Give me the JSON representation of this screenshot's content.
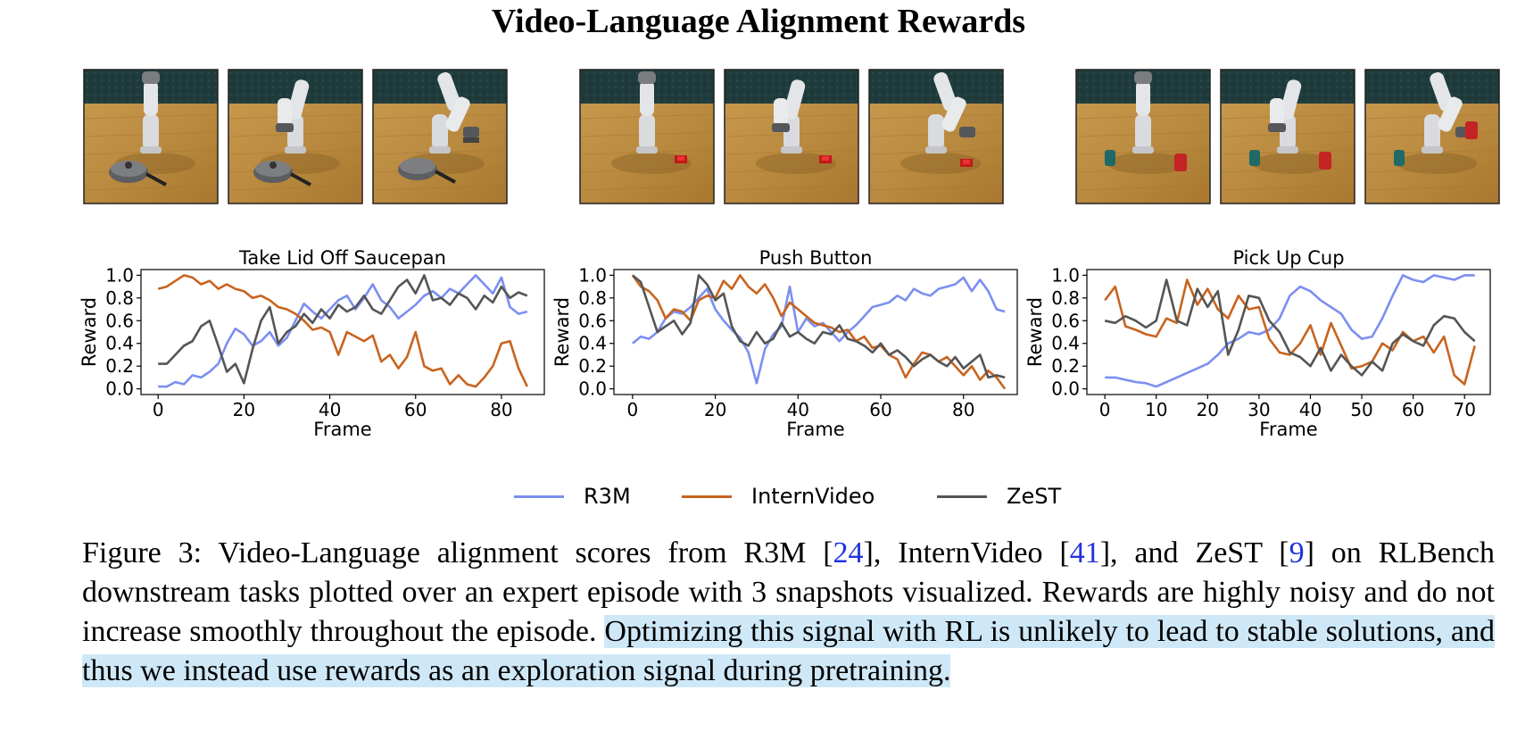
{
  "header": {
    "title": "Video-Language Alignment Rewards"
  },
  "colors": {
    "r3m": "#7b8ff0",
    "internvideo": "#c8641f",
    "zest": "#555555"
  },
  "legend": [
    {
      "label": "R3M",
      "color": "#7b8ff0"
    },
    {
      "label": "InternVideo",
      "color": "#c8641f"
    },
    {
      "label": "ZeST",
      "color": "#555555"
    }
  ],
  "snapshots": [
    {
      "task": "saucepan",
      "frames": [
        "frame-start",
        "frame-mid",
        "frame-end"
      ]
    },
    {
      "task": "button",
      "frames": [
        "frame-start",
        "frame-mid",
        "frame-end"
      ]
    },
    {
      "task": "cup",
      "frames": [
        "frame-start",
        "frame-mid",
        "frame-end"
      ]
    }
  ],
  "chart_data": [
    {
      "type": "line",
      "title": "Take Lid Off Saucepan",
      "xlabel": "Frame",
      "ylabel": "Reward",
      "xlim": [
        -4,
        90
      ],
      "ylim": [
        -0.05,
        1.05
      ],
      "xticks": [
        0,
        20,
        40,
        60,
        80
      ],
      "yticks": [
        "0.0",
        "0.2",
        "0.4",
        "0.6",
        "0.8",
        "1.0"
      ],
      "x": [
        0,
        2,
        4,
        6,
        8,
        10,
        12,
        14,
        16,
        18,
        20,
        22,
        24,
        26,
        28,
        30,
        32,
        34,
        36,
        38,
        40,
        42,
        44,
        46,
        48,
        50,
        52,
        54,
        56,
        58,
        60,
        62,
        64,
        66,
        68,
        70,
        72,
        74,
        76,
        78,
        80,
        82,
        84,
        86
      ],
      "series": [
        {
          "name": "R3M",
          "values": [
            0.02,
            0.02,
            0.06,
            0.04,
            0.12,
            0.1,
            0.15,
            0.22,
            0.4,
            0.53,
            0.48,
            0.38,
            0.42,
            0.5,
            0.38,
            0.45,
            0.6,
            0.75,
            0.68,
            0.62,
            0.7,
            0.78,
            0.82,
            0.7,
            0.8,
            0.92,
            0.78,
            0.72,
            0.62,
            0.68,
            0.74,
            0.82,
            0.86,
            0.8,
            0.88,
            0.84,
            0.92,
            1.0,
            0.92,
            0.84,
            0.98,
            0.72,
            0.66,
            0.68
          ]
        },
        {
          "name": "InternVideo",
          "values": [
            0.88,
            0.9,
            0.95,
            1.0,
            0.98,
            0.92,
            0.95,
            0.88,
            0.92,
            0.88,
            0.86,
            0.8,
            0.82,
            0.78,
            0.72,
            0.7,
            0.66,
            0.6,
            0.52,
            0.54,
            0.5,
            0.3,
            0.5,
            0.46,
            0.42,
            0.47,
            0.24,
            0.3,
            0.18,
            0.28,
            0.5,
            0.2,
            0.16,
            0.18,
            0.04,
            0.12,
            0.04,
            0.02,
            0.1,
            0.2,
            0.4,
            0.42,
            0.18,
            0.02
          ]
        },
        {
          "name": "ZeST",
          "values": [
            0.22,
            0.22,
            0.3,
            0.38,
            0.42,
            0.55,
            0.6,
            0.38,
            0.15,
            0.22,
            0.05,
            0.35,
            0.6,
            0.72,
            0.4,
            0.5,
            0.55,
            0.66,
            0.58,
            0.7,
            0.62,
            0.74,
            0.68,
            0.72,
            0.82,
            0.7,
            0.66,
            0.78,
            0.9,
            0.96,
            0.84,
            1.0,
            0.78,
            0.8,
            0.74,
            0.84,
            0.8,
            0.7,
            0.82,
            0.76,
            0.9,
            0.8,
            0.85,
            0.82
          ]
        }
      ]
    },
    {
      "type": "line",
      "title": "Push Button",
      "xlabel": "Frame",
      "ylabel": "Reward",
      "xlim": [
        -4.5,
        93
      ],
      "ylim": [
        -0.05,
        1.05
      ],
      "xticks": [
        0,
        20,
        40,
        60,
        80
      ],
      "yticks": [
        "0.0",
        "0.2",
        "0.4",
        "0.6",
        "0.8",
        "1.0"
      ],
      "x": [
        0,
        2,
        4,
        6,
        8,
        10,
        12,
        14,
        16,
        18,
        20,
        22,
        24,
        26,
        28,
        30,
        32,
        34,
        36,
        38,
        40,
        42,
        44,
        46,
        48,
        50,
        52,
        54,
        56,
        58,
        60,
        62,
        64,
        66,
        68,
        70,
        72,
        74,
        76,
        78,
        80,
        82,
        84,
        86,
        88,
        90
      ],
      "series": [
        {
          "name": "R3M",
          "values": [
            0.4,
            0.46,
            0.44,
            0.5,
            0.62,
            0.68,
            0.66,
            0.72,
            0.8,
            0.88,
            0.7,
            0.6,
            0.52,
            0.45,
            0.32,
            0.05,
            0.35,
            0.48,
            0.55,
            0.9,
            0.5,
            0.62,
            0.55,
            0.58,
            0.5,
            0.42,
            0.5,
            0.56,
            0.64,
            0.72,
            0.74,
            0.76,
            0.82,
            0.78,
            0.88,
            0.84,
            0.82,
            0.88,
            0.9,
            0.92,
            0.98,
            0.86,
            0.96,
            0.86,
            0.7,
            0.68
          ]
        },
        {
          "name": "InternVideo",
          "values": [
            1.0,
            0.9,
            0.86,
            0.78,
            0.62,
            0.7,
            0.68,
            0.6,
            0.78,
            0.82,
            0.8,
            0.95,
            0.88,
            1.0,
            0.9,
            0.84,
            0.92,
            0.8,
            0.64,
            0.76,
            0.7,
            0.64,
            0.58,
            0.56,
            0.54,
            0.5,
            0.52,
            0.42,
            0.46,
            0.36,
            0.38,
            0.3,
            0.26,
            0.1,
            0.22,
            0.32,
            0.3,
            0.24,
            0.28,
            0.2,
            0.12,
            0.2,
            0.08,
            0.16,
            0.1,
            0.0
          ]
        },
        {
          "name": "ZeST",
          "values": [
            1.0,
            0.94,
            0.72,
            0.5,
            0.55,
            0.6,
            0.48,
            0.58,
            1.0,
            0.92,
            0.78,
            0.84,
            0.55,
            0.42,
            0.38,
            0.5,
            0.4,
            0.44,
            0.58,
            0.46,
            0.5,
            0.44,
            0.4,
            0.5,
            0.48,
            0.56,
            0.44,
            0.42,
            0.38,
            0.32,
            0.4,
            0.3,
            0.34,
            0.28,
            0.2,
            0.26,
            0.3,
            0.24,
            0.2,
            0.28,
            0.18,
            0.24,
            0.3,
            0.1,
            0.12,
            0.1
          ]
        }
      ]
    },
    {
      "type": "line",
      "title": "Pick Up Cup",
      "xlabel": "Frame",
      "ylabel": "Reward",
      "xlim": [
        -3.5,
        75
      ],
      "ylim": [
        -0.05,
        1.05
      ],
      "xticks": [
        0,
        10,
        20,
        30,
        40,
        50,
        60,
        70
      ],
      "yticks": [
        "0.0",
        "0.2",
        "0.4",
        "0.6",
        "0.8",
        "1.0"
      ],
      "x": [
        0,
        2,
        4,
        6,
        8,
        10,
        12,
        14,
        16,
        18,
        20,
        22,
        24,
        26,
        28,
        30,
        32,
        34,
        36,
        38,
        40,
        42,
        44,
        46,
        48,
        50,
        52,
        54,
        56,
        58,
        60,
        62,
        64,
        66,
        68,
        70,
        72
      ],
      "series": [
        {
          "name": "R3M",
          "values": [
            0.1,
            0.1,
            0.08,
            0.06,
            0.05,
            0.02,
            0.06,
            0.1,
            0.14,
            0.18,
            0.22,
            0.3,
            0.4,
            0.44,
            0.5,
            0.48,
            0.52,
            0.62,
            0.82,
            0.9,
            0.86,
            0.78,
            0.72,
            0.66,
            0.52,
            0.44,
            0.46,
            0.62,
            0.82,
            1.0,
            0.96,
            0.94,
            1.0,
            0.98,
            0.96,
            1.0,
            1.0
          ]
        },
        {
          "name": "InternVideo",
          "values": [
            0.78,
            0.9,
            0.55,
            0.52,
            0.48,
            0.46,
            0.62,
            0.58,
            0.96,
            0.74,
            0.88,
            0.7,
            0.62,
            0.82,
            0.7,
            0.72,
            0.44,
            0.32,
            0.3,
            0.4,
            0.56,
            0.3,
            0.58,
            0.38,
            0.18,
            0.2,
            0.24,
            0.4,
            0.34,
            0.5,
            0.42,
            0.46,
            0.32,
            0.46,
            0.12,
            0.04,
            0.38
          ]
        },
        {
          "name": "ZeST",
          "values": [
            0.6,
            0.58,
            0.64,
            0.6,
            0.54,
            0.6,
            0.96,
            0.6,
            0.56,
            0.88,
            0.72,
            0.86,
            0.3,
            0.52,
            0.82,
            0.8,
            0.6,
            0.5,
            0.32,
            0.28,
            0.2,
            0.36,
            0.16,
            0.3,
            0.2,
            0.12,
            0.24,
            0.16,
            0.4,
            0.48,
            0.42,
            0.38,
            0.56,
            0.64,
            0.62,
            0.5,
            0.42
          ]
        }
      ]
    }
  ],
  "caption": {
    "prefix": "Figure 3:  Video-Language alignment scores from R3M [",
    "cite1": "24",
    "mid1": "], InternVideo [",
    "cite2": "41",
    "mid2": "], and ZeST [",
    "cite3": "9",
    "mid3": "] on RLBench downstream tasks plotted over an expert episode with 3 snapshots visualized. Rewards are highly noisy and do not increase smoothly throughout the episode. ",
    "highlight": "Optimizing this signal with RL is unlikely to lead to stable solutions, and thus we instead use rewards as an exploration signal during pretraining."
  }
}
